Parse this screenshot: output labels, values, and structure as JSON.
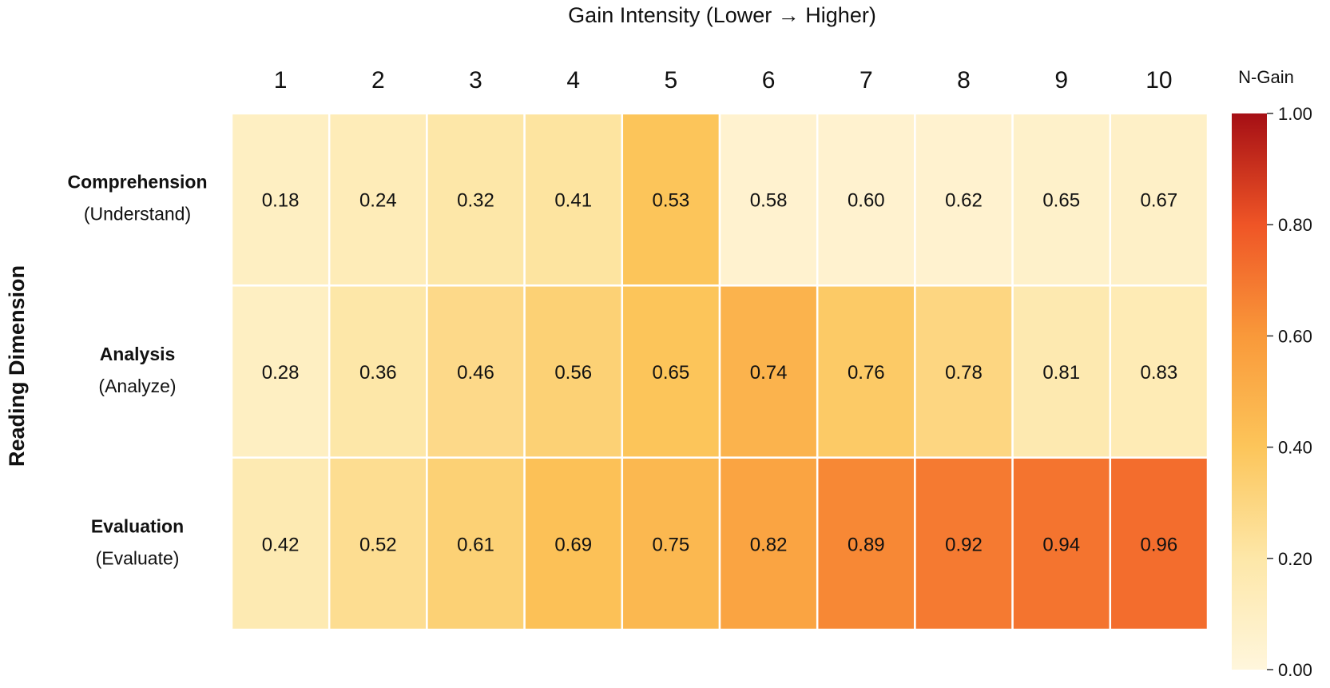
{
  "chart_data": {
    "type": "heatmap",
    "title": "Gain Intensity (Lower → Higher)",
    "ylabel": "Reading Dimension",
    "x": [
      "1",
      "2",
      "3",
      "4",
      "5",
      "6",
      "7",
      "8",
      "9",
      "10"
    ],
    "rows": [
      {
        "name": "Comprehension",
        "sub": "(Understand)",
        "values": [
          0.18,
          0.24,
          0.32,
          0.41,
          0.53,
          0.58,
          0.6,
          0.62,
          0.65,
          0.67
        ],
        "fill_level": [
          0.1,
          0.14,
          0.2,
          0.22,
          0.4,
          0.05,
          0.05,
          0.05,
          0.07,
          0.08
        ]
      },
      {
        "name": "Analysis",
        "sub": "(Analyze)",
        "values": [
          0.28,
          0.36,
          0.46,
          0.56,
          0.65,
          0.74,
          0.76,
          0.78,
          0.81,
          0.83
        ],
        "fill_level": [
          0.1,
          0.2,
          0.28,
          0.33,
          0.4,
          0.48,
          0.37,
          0.3,
          0.17,
          0.15
        ]
      },
      {
        "name": "Evaluation",
        "sub": "(Evaluate)",
        "values": [
          0.42,
          0.52,
          0.61,
          0.69,
          0.75,
          0.82,
          0.89,
          0.92,
          0.94,
          0.96
        ],
        "fill_level": [
          0.16,
          0.26,
          0.33,
          0.42,
          0.46,
          0.55,
          0.65,
          0.69,
          0.71,
          0.73
        ]
      }
    ],
    "colorbar": {
      "title": "N-Gain",
      "range": [
        0,
        1
      ],
      "ticks": [
        "0.00",
        "0.20",
        "0.40",
        "0.60",
        "0.80",
        "1.00"
      ],
      "colors": [
        "#fff6dc",
        "#fde7a8",
        "#fcc55a",
        "#f9993a",
        "#ef5526",
        "#a50f15"
      ]
    },
    "grid": false,
    "legend": "right"
  }
}
